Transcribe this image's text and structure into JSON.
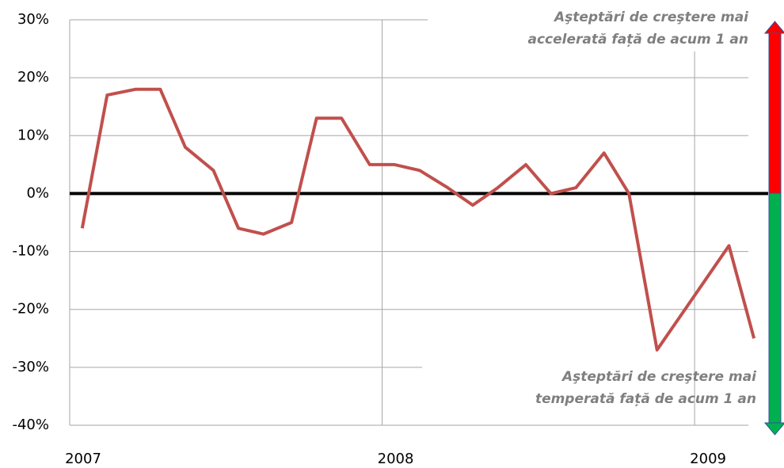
{
  "chart_data": {
    "type": "line",
    "annotations": [
      [
        "Aşteptări de creştere mai",
        "accelerată față de acum 1 an"
      ],
      [
        "Aşteptări de creştere mai",
        "temperată față de acum 1 an"
      ]
    ],
    "x": [
      2007.04,
      2007.12,
      2007.21,
      2007.29,
      2007.37,
      2007.46,
      2007.54,
      2007.62,
      2007.71,
      2007.79,
      2007.87,
      2007.96,
      2008.04,
      2008.12,
      2008.21,
      2008.29,
      2008.37,
      2008.46,
      2008.54,
      2008.62,
      2008.71,
      2008.79,
      2008.88,
      2009.11,
      2009.19
    ],
    "series": [
      {
        "color": "#c0504d",
        "values": [
          -6,
          17,
          18,
          18,
          8,
          4,
          -6,
          -7,
          -5,
          13,
          13,
          5,
          5,
          4,
          1,
          -2,
          1,
          5,
          0,
          1,
          7,
          0,
          -27,
          -9,
          -25
        ]
      }
    ],
    "xlim": [
      2007,
      2009.2
    ],
    "xticks": [
      2007,
      2008,
      2009
    ],
    "ylim": [
      -40,
      30
    ],
    "yticks": [
      {
        "value": -40,
        "label": "-40%"
      },
      {
        "value": -30,
        "label": "-30%"
      },
      {
        "value": -20,
        "label": "-20%"
      },
      {
        "value": -10,
        "label": "-10%"
      },
      {
        "value": 0,
        "label": "0%"
      },
      {
        "value": 10,
        "label": "10%"
      },
      {
        "value": 20,
        "label": "20%"
      },
      {
        "value": 30,
        "label": "30%"
      }
    ],
    "grid": true
  }
}
